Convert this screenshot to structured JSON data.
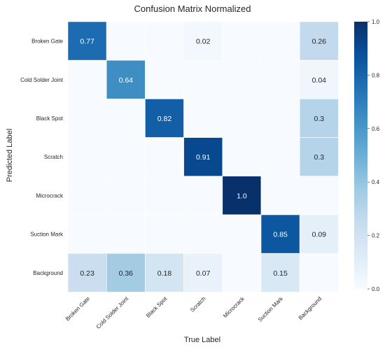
{
  "chart_data": {
    "type": "heatmap",
    "title": "Confusion Matrix Normalized",
    "xlabel": "True Label",
    "ylabel": "Predicted Label",
    "x_categories": [
      "Broken Gate",
      "Cold Solder Joint",
      "Black Spot",
      "Scratch",
      "Microcrack",
      "Suction Mark",
      "Background"
    ],
    "y_categories": [
      "Broken Gate",
      "Cold Solder Joint",
      "Black Spot",
      "Scratch",
      "Microcrack",
      "Suction Mark",
      "Background"
    ],
    "values": [
      [
        0.77,
        0,
        0,
        0.02,
        0,
        0,
        0.26
      ],
      [
        0,
        0.64,
        0,
        0,
        0,
        0,
        0.04
      ],
      [
        0,
        0,
        0.82,
        0,
        0,
        0,
        0.3
      ],
      [
        0,
        0,
        0,
        0.91,
        0,
        0,
        0.3
      ],
      [
        0,
        0,
        0,
        0,
        1.0,
        0,
        0
      ],
      [
        0,
        0,
        0,
        0,
        0,
        0.85,
        0.09
      ],
      [
        0.23,
        0.36,
        0.18,
        0.07,
        0,
        0.15,
        0
      ]
    ],
    "cell_labels": [
      [
        "0.77",
        "",
        "",
        "0.02",
        "",
        "",
        "0.26"
      ],
      [
        "",
        "0.64",
        "",
        "",
        "",
        "",
        "0.04"
      ],
      [
        "",
        "",
        "0.82",
        "",
        "",
        "",
        "0.3"
      ],
      [
        "",
        "",
        "",
        "0.91",
        "",
        "",
        "0.3"
      ],
      [
        "",
        "",
        "",
        "",
        "1.0",
        "",
        ""
      ],
      [
        "",
        "",
        "",
        "",
        "",
        "0.85",
        "0.09"
      ],
      [
        "0.23",
        "0.36",
        "0.18",
        "0.07",
        "",
        "0.15",
        ""
      ]
    ],
    "colorbar": {
      "range": [
        0,
        1
      ],
      "ticks": [
        "0.0",
        "0.2",
        "0.4",
        "0.6",
        "0.8",
        "1.0"
      ],
      "colormap": "Blues"
    }
  }
}
